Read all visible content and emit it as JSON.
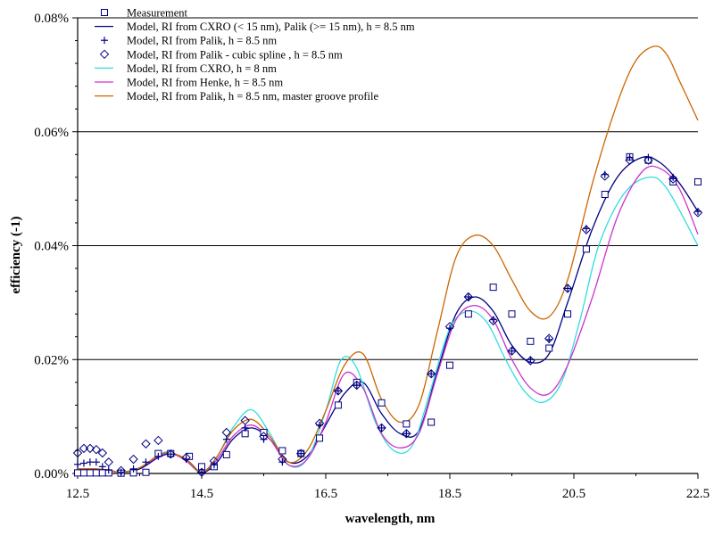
{
  "chart_data": {
    "type": "line",
    "title": "",
    "xlabel": "wavelength, nm",
    "ylabel": "efficiency (-1)",
    "xlim": [
      12.5,
      22.5
    ],
    "ylim": [
      0,
      0.08
    ],
    "xticks": [
      12.5,
      14.5,
      16.5,
      18.5,
      20.5,
      22.5
    ],
    "xtick_labels": [
      "12.5",
      "14.5",
      "16.5",
      "18.5",
      "20.5",
      "22.5"
    ],
    "yticks": [
      0,
      0.02,
      0.04,
      0.06,
      0.08
    ],
    "ytick_labels": [
      "0.00%",
      "0.02%",
      "0.04%",
      "0.06%",
      "0.08%"
    ],
    "grid": "horizontal",
    "legend_position": "top-left",
    "series": [
      {
        "name": "Measurement",
        "kind": "marker",
        "marker": "square",
        "color": "#000080",
        "x": [
          12.5,
          12.6,
          12.7,
          12.8,
          12.9,
          13.0,
          13.2,
          13.4,
          13.6,
          13.8,
          14.0,
          14.3,
          14.5,
          14.7,
          14.9,
          15.2,
          15.5,
          15.8,
          16.1,
          16.4,
          16.7,
          17.0,
          17.4,
          17.8,
          18.2,
          18.5,
          18.8,
          19.2,
          19.5,
          19.8,
          20.1,
          20.4,
          20.7,
          21.0,
          21.4,
          21.7,
          22.1,
          22.5
        ],
        "y": [
          0.0001,
          0.0001,
          0.0001,
          0.0001,
          0.0001,
          0.0001,
          5e-05,
          0.0001,
          0.0002,
          0.0035,
          0.0035,
          0.003,
          0.0012,
          0.0012,
          0.0033,
          0.007,
          0.0072,
          0.004,
          0.0035,
          0.0062,
          0.012,
          0.016,
          0.0124,
          0.0087,
          0.009,
          0.019,
          0.028,
          0.0327,
          0.028,
          0.0232,
          0.022,
          0.028,
          0.0394,
          0.049,
          0.0556,
          0.055,
          0.0512,
          0.0512
        ]
      },
      {
        "name": "Model, RI from CXRO (< 15 nm), Palik (>= 15 nm), h = 8.5 nm",
        "kind": "line",
        "color": "#000080",
        "x": [
          12.5,
          12.8,
          13.0,
          13.2,
          13.5,
          13.8,
          14.0,
          14.25,
          14.5,
          14.75,
          15.0,
          15.3,
          15.6,
          15.9,
          16.2,
          16.5,
          16.8,
          17.1,
          17.4,
          17.7,
          18.0,
          18.3,
          18.6,
          18.9,
          19.2,
          19.5,
          19.8,
          20.1,
          20.4,
          20.8,
          21.2,
          21.6,
          21.9,
          22.2,
          22.5
        ],
        "y": [
          0.0008,
          0.0008,
          0.0006,
          0.0002,
          0.0008,
          0.0028,
          0.0034,
          0.0025,
          0.0002,
          0.002,
          0.006,
          0.008,
          0.006,
          0.002,
          0.003,
          0.0085,
          0.014,
          0.016,
          0.0105,
          0.007,
          0.0075,
          0.018,
          0.028,
          0.031,
          0.0285,
          0.0225,
          0.0195,
          0.021,
          0.03,
          0.043,
          0.052,
          0.0555,
          0.0545,
          0.051,
          0.046
        ]
      },
      {
        "name": "Model, RI from Palik, h = 8.5 nm",
        "kind": "marker",
        "marker": "plus",
        "color": "#000080",
        "x": [
          12.5,
          12.6,
          12.7,
          12.8,
          12.9,
          13.0,
          13.2,
          13.4,
          13.6,
          13.8,
          14.0,
          14.25,
          14.5,
          14.7,
          14.9,
          15.2,
          15.5,
          15.8,
          16.1,
          16.4,
          16.7,
          17.0,
          17.4,
          17.8,
          18.2,
          18.5,
          18.8,
          19.2,
          19.5,
          19.8,
          20.1,
          20.4,
          20.7,
          21.0,
          21.4,
          21.7,
          22.1,
          22.5
        ],
        "y": [
          0.0016,
          0.0018,
          0.002,
          0.002,
          0.0012,
          0.0006,
          0.0002,
          0.0008,
          0.002,
          0.003,
          0.0034,
          0.0025,
          0.0002,
          0.0015,
          0.006,
          0.008,
          0.006,
          0.002,
          0.0035,
          0.0085,
          0.0145,
          0.0155,
          0.008,
          0.007,
          0.0175,
          0.0255,
          0.031,
          0.027,
          0.0215,
          0.02,
          0.0235,
          0.0325,
          0.043,
          0.0525,
          0.0555,
          0.0555,
          0.052,
          0.046
        ]
      },
      {
        "name": "Model, RI from Palik - cubic spline , h = 8.5 nm",
        "kind": "marker",
        "marker": "diamond",
        "color": "#000080",
        "x": [
          12.5,
          12.6,
          12.7,
          12.8,
          12.9,
          13.0,
          13.2,
          13.4,
          13.6,
          13.8,
          14.0,
          14.25,
          14.5,
          14.7,
          14.9,
          15.2,
          15.5,
          15.8,
          16.1,
          16.4,
          16.7,
          17.0,
          17.4,
          17.8,
          18.2,
          18.5,
          18.8,
          19.2,
          19.5,
          19.8,
          20.1,
          20.4,
          20.7,
          21.0,
          21.4,
          21.7,
          22.1,
          22.5
        ],
        "y": [
          0.0036,
          0.0044,
          0.0044,
          0.0042,
          0.0036,
          0.002,
          0.0005,
          0.0025,
          0.0052,
          0.0058,
          0.0034,
          0.0028,
          0.0002,
          0.0022,
          0.0072,
          0.0093,
          0.0065,
          0.0025,
          0.0035,
          0.0088,
          0.0145,
          0.0155,
          0.008,
          0.007,
          0.0175,
          0.0258,
          0.031,
          0.0268,
          0.0215,
          0.0198,
          0.0237,
          0.0325,
          0.0428,
          0.0522,
          0.055,
          0.055,
          0.0517,
          0.0458
        ]
      },
      {
        "name": "Model, RI from CXRO, h = 8 nm",
        "kind": "line",
        "color": "#33DDDD",
        "x": [
          12.5,
          12.8,
          13.0,
          13.2,
          13.5,
          13.8,
          14.0,
          14.25,
          14.5,
          14.75,
          15.0,
          15.3,
          15.6,
          15.9,
          16.2,
          16.5,
          16.75,
          17.0,
          17.3,
          17.6,
          17.9,
          18.2,
          18.5,
          18.8,
          19.1,
          19.4,
          19.7,
          20.0,
          20.3,
          20.6,
          20.9,
          21.3,
          21.7,
          22.0,
          22.5
        ],
        "y": [
          0.0008,
          0.0008,
          0.0005,
          0.0002,
          0.001,
          0.0032,
          0.0038,
          0.0022,
          0.0002,
          0.003,
          0.008,
          0.0112,
          0.007,
          0.0015,
          0.0025,
          0.011,
          0.02,
          0.0185,
          0.009,
          0.004,
          0.005,
          0.015,
          0.0255,
          0.0285,
          0.0265,
          0.02,
          0.0145,
          0.0125,
          0.016,
          0.027,
          0.04,
          0.049,
          0.052,
          0.05,
          0.04
        ]
      },
      {
        "name": "Model, RI from Henke, h = 8.5 nm",
        "kind": "line",
        "color": "#CC33CC",
        "x": [
          12.5,
          12.8,
          13.0,
          13.2,
          13.5,
          13.8,
          14.0,
          14.25,
          14.5,
          14.75,
          15.0,
          15.3,
          15.6,
          15.9,
          16.2,
          16.5,
          16.8,
          17.1,
          17.4,
          17.7,
          18.0,
          18.3,
          18.6,
          18.9,
          19.2,
          19.5,
          19.8,
          20.1,
          20.4,
          20.8,
          21.2,
          21.6,
          21.9,
          22.2,
          22.5
        ],
        "y": [
          0.0008,
          0.0008,
          0.0005,
          0.0002,
          0.001,
          0.003,
          0.0036,
          0.0022,
          0.0002,
          0.0025,
          0.0065,
          0.0085,
          0.006,
          0.0015,
          0.0025,
          0.009,
          0.0175,
          0.015,
          0.007,
          0.0045,
          0.007,
          0.0175,
          0.027,
          0.0295,
          0.027,
          0.02,
          0.015,
          0.014,
          0.019,
          0.031,
          0.045,
          0.053,
          0.0535,
          0.05,
          0.042
        ]
      },
      {
        "name": "Model, RI from Palik, h = 8.5 nm, master groove profile",
        "kind": "line",
        "color": "#CC6600",
        "x": [
          12.5,
          12.8,
          13.0,
          13.2,
          13.5,
          13.8,
          14.0,
          14.25,
          14.5,
          14.75,
          15.0,
          15.3,
          15.6,
          15.9,
          16.2,
          16.5,
          16.8,
          17.1,
          17.4,
          17.7,
          18.0,
          18.3,
          18.6,
          18.9,
          19.2,
          19.5,
          19.8,
          20.1,
          20.4,
          20.8,
          21.2,
          21.5,
          21.8,
          22.0,
          22.2,
          22.5
        ],
        "y": [
          0.0008,
          0.0008,
          0.0006,
          0.0002,
          0.001,
          0.0032,
          0.0036,
          0.0025,
          0.0002,
          0.003,
          0.0075,
          0.0095,
          0.0065,
          0.002,
          0.004,
          0.011,
          0.019,
          0.021,
          0.013,
          0.009,
          0.012,
          0.025,
          0.038,
          0.0418,
          0.04,
          0.034,
          0.0285,
          0.0275,
          0.034,
          0.051,
          0.065,
          0.0725,
          0.075,
          0.0735,
          0.069,
          0.062
        ]
      }
    ]
  }
}
